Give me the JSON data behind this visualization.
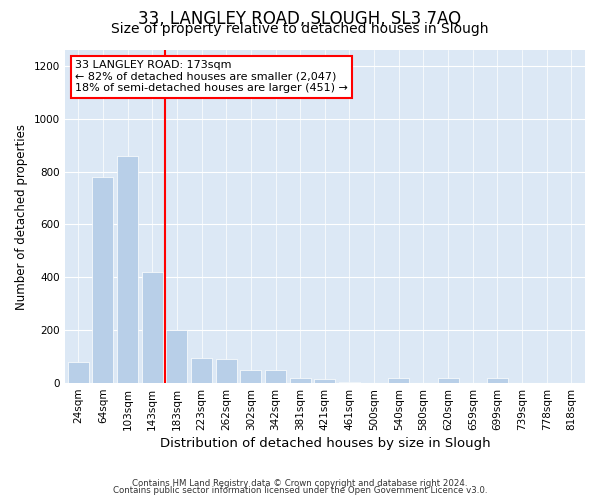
{
  "title": "33, LANGLEY ROAD, SLOUGH, SL3 7AQ",
  "subtitle": "Size of property relative to detached houses in Slough",
  "xlabel": "Distribution of detached houses by size in Slough",
  "ylabel": "Number of detached properties",
  "categories": [
    "24sqm",
    "64sqm",
    "103sqm",
    "143sqm",
    "183sqm",
    "223sqm",
    "262sqm",
    "302sqm",
    "342sqm",
    "381sqm",
    "421sqm",
    "461sqm",
    "500sqm",
    "540sqm",
    "580sqm",
    "620sqm",
    "659sqm",
    "699sqm",
    "739sqm",
    "778sqm",
    "818sqm"
  ],
  "values": [
    80,
    780,
    860,
    420,
    200,
    95,
    90,
    50,
    50,
    20,
    15,
    5,
    0,
    18,
    0,
    18,
    0,
    18,
    0,
    0,
    0
  ],
  "bar_color": "#b8cfe8",
  "vline_color": "red",
  "vline_x_index": 4,
  "annotation_line1": "33 LANGLEY ROAD: 173sqm",
  "annotation_line2": "← 82% of detached houses are smaller (2,047)",
  "annotation_line3": "18% of semi-detached houses are larger (451) →",
  "ylim": [
    0,
    1260
  ],
  "yticks": [
    0,
    200,
    400,
    600,
    800,
    1000,
    1200
  ],
  "plot_bg_color": "#dce8f5",
  "footer_line1": "Contains HM Land Registry data © Crown copyright and database right 2024.",
  "footer_line2": "Contains public sector information licensed under the Open Government Licence v3.0.",
  "title_fontsize": 12,
  "subtitle_fontsize": 10,
  "tick_fontsize": 7.5,
  "ylabel_fontsize": 8.5,
  "xlabel_fontsize": 9.5,
  "footer_fontsize": 6.2,
  "annotation_fontsize": 8
}
